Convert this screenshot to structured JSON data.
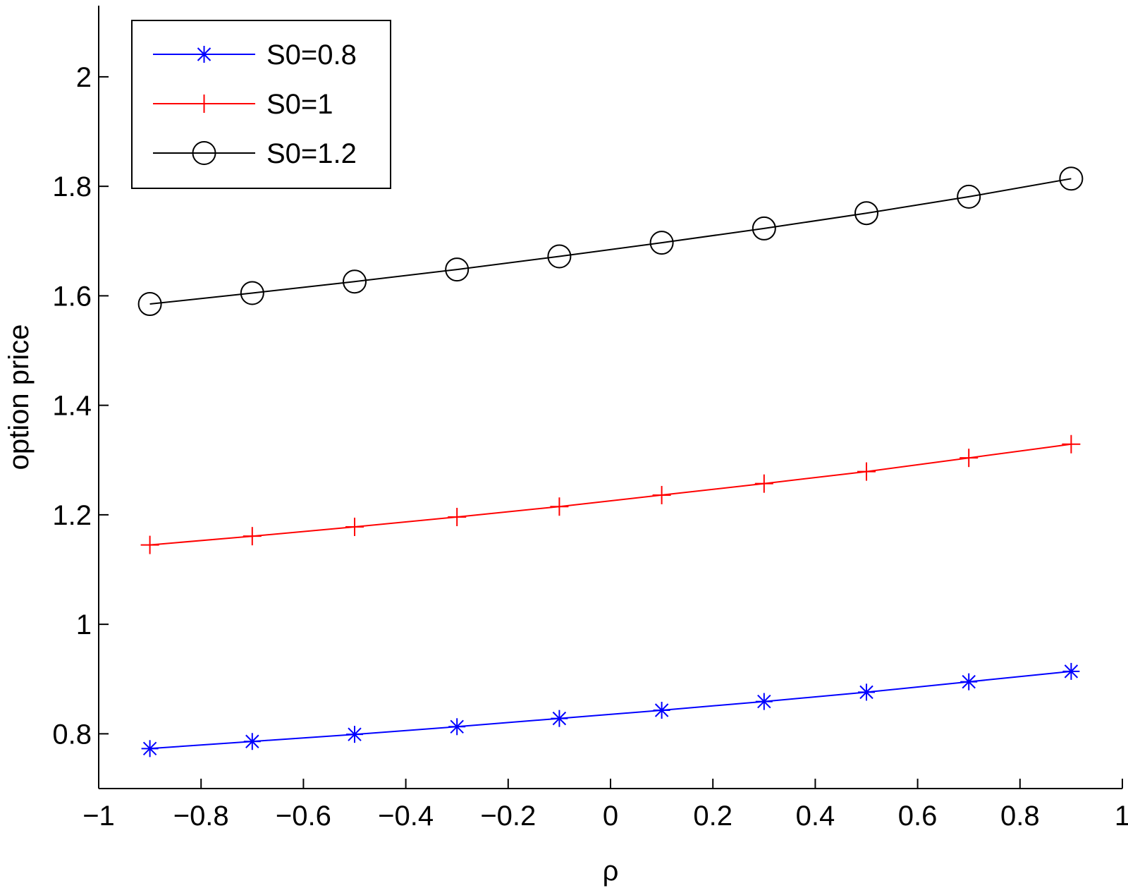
{
  "chart_data": {
    "type": "line",
    "title": "",
    "xlabel": "ρ",
    "ylabel": "option price",
    "xlim": [
      -1,
      1
    ],
    "ylim": [
      0.7,
      2.13
    ],
    "xticks": [
      -1,
      -0.8,
      -0.6,
      -0.4,
      -0.2,
      0,
      0.2,
      0.4,
      0.6,
      0.8,
      1
    ],
    "xtick_labels": [
      "−1",
      "−0.8",
      "−0.6",
      "−0.4",
      "−0.2",
      "0",
      "0.2",
      "0.4",
      "0.6",
      "0.8",
      "1"
    ],
    "yticks": [
      0.8,
      1,
      1.2,
      1.4,
      1.6,
      1.8,
      2
    ],
    "ytick_labels": [
      "0.8",
      "1",
      "1.2",
      "1.4",
      "1.6",
      "1.8",
      "2"
    ],
    "grid": false,
    "legend_position": "top-left",
    "x": [
      -0.9,
      -0.7,
      -0.5,
      -0.3,
      -0.1,
      0.1,
      0.3,
      0.5,
      0.7,
      0.9
    ],
    "series": [
      {
        "name": "S0=0.8",
        "color": "#0000ff",
        "marker": "asterisk",
        "values": [
          0.773,
          0.786,
          0.799,
          0.813,
          0.828,
          0.843,
          0.859,
          0.876,
          0.895,
          0.914
        ]
      },
      {
        "name": "S0=1",
        "color": "#ff0000",
        "marker": "plus",
        "values": [
          1.145,
          1.161,
          1.178,
          1.196,
          1.215,
          1.236,
          1.257,
          1.279,
          1.304,
          1.329
        ]
      },
      {
        "name": "S0=1.2",
        "color": "#000000",
        "marker": "circle",
        "values": [
          1.585,
          1.605,
          1.626,
          1.648,
          1.672,
          1.697,
          1.723,
          1.751,
          1.781,
          1.814
        ]
      }
    ]
  }
}
